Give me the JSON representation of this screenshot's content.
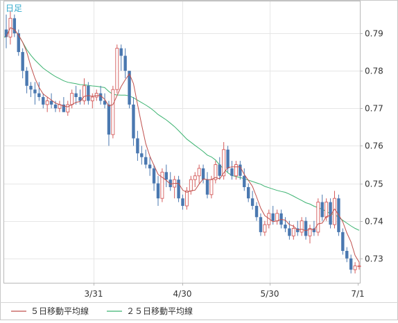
{
  "chart_data": {
    "type": "candlestick",
    "title": "日足",
    "x_ticks": [
      "3/31",
      "4/30",
      "5/30",
      "7/1"
    ],
    "y_ticks": [
      "0.79",
      "0.78",
      "0.77",
      "0.76",
      "0.75",
      "0.74",
      "0.73"
    ],
    "y_range": [
      0.7235,
      0.7985
    ],
    "grid": true,
    "legend_position": "bottom-left",
    "legend": [
      {
        "label": "５日移動平均線",
        "color": "#c0504d"
      },
      {
        "label": "２５日移動平均線",
        "color": "#3cb371"
      }
    ],
    "colors": {
      "up": "#d45a5a",
      "down": "#4a78b0",
      "ma5": "#c0504d",
      "ma25": "#3cb371",
      "title": "#33aacc"
    },
    "candles": [
      [
        0.791,
        0.795,
        0.786,
        0.789
      ],
      [
        0.789,
        0.796,
        0.787,
        0.794
      ],
      [
        0.794,
        0.795,
        0.789,
        0.79
      ],
      [
        0.79,
        0.791,
        0.784,
        0.785
      ],
      [
        0.785,
        0.786,
        0.778,
        0.78
      ],
      [
        0.78,
        0.781,
        0.774,
        0.776
      ],
      [
        0.776,
        0.777,
        0.773,
        0.775
      ],
      [
        0.775,
        0.777,
        0.771,
        0.774
      ],
      [
        0.774,
        0.777,
        0.772,
        0.773
      ],
      [
        0.773,
        0.774,
        0.77,
        0.771
      ],
      [
        0.771,
        0.773,
        0.769,
        0.772
      ],
      [
        0.772,
        0.774,
        0.77,
        0.771
      ],
      [
        0.771,
        0.772,
        0.769,
        0.77
      ],
      [
        0.77,
        0.772,
        0.769,
        0.771
      ],
      [
        0.771,
        0.773,
        0.769,
        0.769
      ],
      [
        0.769,
        0.772,
        0.768,
        0.771
      ],
      [
        0.771,
        0.775,
        0.77,
        0.774
      ],
      [
        0.774,
        0.776,
        0.771,
        0.773
      ],
      [
        0.773,
        0.775,
        0.771,
        0.772
      ],
      [
        0.772,
        0.778,
        0.771,
        0.776
      ],
      [
        0.776,
        0.777,
        0.771,
        0.772
      ],
      [
        0.772,
        0.774,
        0.77,
        0.773
      ],
      [
        0.773,
        0.775,
        0.772,
        0.774
      ],
      [
        0.774,
        0.776,
        0.771,
        0.772
      ],
      [
        0.772,
        0.774,
        0.77,
        0.771
      ],
      [
        0.771,
        0.772,
        0.76,
        0.763
      ],
      [
        0.763,
        0.776,
        0.762,
        0.775
      ],
      [
        0.775,
        0.787,
        0.774,
        0.786
      ],
      [
        0.786,
        0.787,
        0.78,
        0.784
      ],
      [
        0.784,
        0.786,
        0.778,
        0.78
      ],
      [
        0.78,
        0.78,
        0.77,
        0.771
      ],
      [
        0.771,
        0.773,
        0.76,
        0.762
      ],
      [
        0.762,
        0.764,
        0.756,
        0.758
      ],
      [
        0.758,
        0.76,
        0.755,
        0.757
      ],
      [
        0.757,
        0.759,
        0.754,
        0.755
      ],
      [
        0.755,
        0.757,
        0.752,
        0.754
      ],
      [
        0.754,
        0.755,
        0.748,
        0.75
      ],
      [
        0.75,
        0.752,
        0.744,
        0.746
      ],
      [
        0.746,
        0.754,
        0.745,
        0.753
      ],
      [
        0.753,
        0.755,
        0.749,
        0.751
      ],
      [
        0.751,
        0.753,
        0.748,
        0.749
      ],
      [
        0.749,
        0.752,
        0.746,
        0.751
      ],
      [
        0.751,
        0.752,
        0.745,
        0.746
      ],
      [
        0.746,
        0.747,
        0.743,
        0.744
      ],
      [
        0.744,
        0.749,
        0.743,
        0.748
      ],
      [
        0.748,
        0.752,
        0.747,
        0.751
      ],
      [
        0.751,
        0.753,
        0.749,
        0.752
      ],
      [
        0.752,
        0.755,
        0.75,
        0.754
      ],
      [
        0.754,
        0.755,
        0.75,
        0.751
      ],
      [
        0.751,
        0.753,
        0.746,
        0.747
      ],
      [
        0.747,
        0.752,
        0.746,
        0.751
      ],
      [
        0.751,
        0.756,
        0.75,
        0.755
      ],
      [
        0.755,
        0.757,
        0.751,
        0.752
      ],
      [
        0.752,
        0.761,
        0.751,
        0.759
      ],
      [
        0.759,
        0.76,
        0.753,
        0.754
      ],
      [
        0.754,
        0.756,
        0.751,
        0.752
      ],
      [
        0.752,
        0.756,
        0.751,
        0.755
      ],
      [
        0.755,
        0.756,
        0.751,
        0.752
      ],
      [
        0.752,
        0.754,
        0.748,
        0.749
      ],
      [
        0.749,
        0.75,
        0.745,
        0.746
      ],
      [
        0.746,
        0.748,
        0.743,
        0.744
      ],
      [
        0.744,
        0.745,
        0.74,
        0.741
      ],
      [
        0.741,
        0.742,
        0.736,
        0.737
      ],
      [
        0.737,
        0.74,
        0.736,
        0.739
      ],
      [
        0.739,
        0.743,
        0.738,
        0.742
      ],
      [
        0.742,
        0.744,
        0.739,
        0.74
      ],
      [
        0.74,
        0.743,
        0.739,
        0.742
      ],
      [
        0.742,
        0.743,
        0.738,
        0.739
      ],
      [
        0.739,
        0.741,
        0.737,
        0.738
      ],
      [
        0.738,
        0.74,
        0.735,
        0.736
      ],
      [
        0.736,
        0.739,
        0.735,
        0.738
      ],
      [
        0.738,
        0.74,
        0.736,
        0.737
      ],
      [
        0.737,
        0.741,
        0.736,
        0.74
      ],
      [
        0.74,
        0.741,
        0.735,
        0.736
      ],
      [
        0.736,
        0.739,
        0.734,
        0.738
      ],
      [
        0.738,
        0.74,
        0.736,
        0.737
      ],
      [
        0.737,
        0.746,
        0.736,
        0.745
      ],
      [
        0.745,
        0.747,
        0.74,
        0.741
      ],
      [
        0.741,
        0.746,
        0.74,
        0.745
      ],
      [
        0.745,
        0.746,
        0.738,
        0.739
      ],
      [
        0.739,
        0.748,
        0.738,
        0.746
      ],
      [
        0.746,
        0.747,
        0.736,
        0.737
      ],
      [
        0.737,
        0.738,
        0.731,
        0.732
      ],
      [
        0.732,
        0.733,
        0.729,
        0.73
      ],
      [
        0.73,
        0.731,
        0.726,
        0.727
      ],
      [
        0.727,
        0.729,
        0.726,
        0.728
      ],
      [
        0.728,
        0.729,
        0.727,
        0.728
      ]
    ]
  }
}
